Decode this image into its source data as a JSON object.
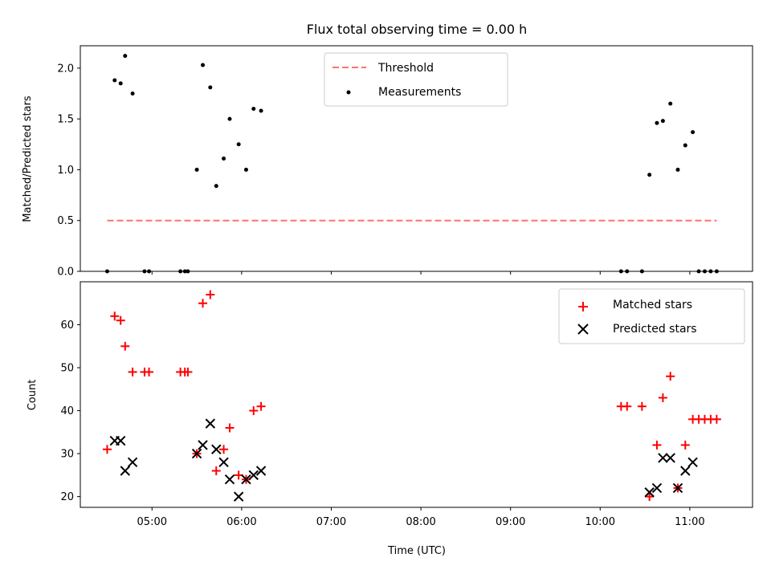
{
  "title": "Flux total observing time = 0.00 h",
  "chart_data": [
    {
      "type": "scatter",
      "ylabel": "Matched/Predicted stars",
      "xlim": [
        "04:12",
        "11:42"
      ],
      "ylim": [
        0,
        2.22
      ],
      "x_ticks": [
        "05:00",
        "06:00",
        "07:00",
        "08:00",
        "09:00",
        "10:00",
        "11:00"
      ],
      "y_ticks": [
        "0.0",
        "0.5",
        "1.0",
        "1.5",
        "2.0"
      ],
      "y_tick_values": [
        0,
        0.5,
        1.0,
        1.5,
        2.0
      ],
      "threshold": {
        "name": "Threshold",
        "y": 0.5,
        "x_range": [
          "04:30",
          "11:18"
        ],
        "color": "#ff7070"
      },
      "measurements": {
        "name": "Measurements",
        "color": "#000000",
        "x": [
          "04:30",
          "04:35",
          "04:39",
          "04:42",
          "04:47",
          "04:55",
          "04:58",
          "05:19",
          "05:22",
          "05:24",
          "05:30",
          "05:34",
          "05:39",
          "05:43",
          "05:48",
          "05:52",
          "05:58",
          "06:03",
          "06:08",
          "06:13",
          "10:14",
          "10:18",
          "10:28",
          "10:33",
          "10:38",
          "10:42",
          "10:47",
          "10:52",
          "10:57",
          "11:02",
          "11:06",
          "11:10",
          "11:14",
          "11:18"
        ],
        "y": [
          0.0,
          1.88,
          1.85,
          2.12,
          1.75,
          0.0,
          0.0,
          0.0,
          0.0,
          0.0,
          1.0,
          2.03,
          1.81,
          0.84,
          1.11,
          1.5,
          1.25,
          1.0,
          1.6,
          1.58,
          0.0,
          0.0,
          0.0,
          0.95,
          1.46,
          1.48,
          1.65,
          1.0,
          1.24,
          1.37,
          0.0,
          0.0,
          0.0,
          0.0
        ]
      },
      "legend_position": "top-center"
    },
    {
      "type": "scatter",
      "xlabel": "Time (UTC)",
      "ylabel": "Count",
      "xlim": [
        "04:12",
        "11:42"
      ],
      "ylim": [
        17.5,
        70
      ],
      "x_ticks": [
        "05:00",
        "06:00",
        "07:00",
        "08:00",
        "09:00",
        "10:00",
        "11:00"
      ],
      "y_ticks": [
        "20",
        "30",
        "40",
        "50",
        "60"
      ],
      "y_tick_values": [
        20,
        30,
        40,
        50,
        60
      ],
      "series": [
        {
          "name": "Matched stars",
          "marker": "plus",
          "color": "#ff0000",
          "x": [
            "04:30",
            "04:35",
            "04:39",
            "04:42",
            "04:47",
            "04:55",
            "04:58",
            "05:19",
            "05:22",
            "05:24",
            "05:30",
            "05:34",
            "05:39",
            "05:43",
            "05:48",
            "05:52",
            "05:58",
            "06:03",
            "06:08",
            "06:13",
            "10:14",
            "10:18",
            "10:28",
            "10:33",
            "10:38",
            "10:42",
            "10:47",
            "10:52",
            "10:57",
            "11:02",
            "11:06",
            "11:10",
            "11:14",
            "11:18"
          ],
          "y": [
            31,
            62,
            61,
            55,
            49,
            49,
            49,
            49,
            49,
            49,
            30,
            65,
            67,
            26,
            31,
            36,
            25,
            24,
            40,
            41,
            41,
            41,
            41,
            20,
            32,
            43,
            48,
            22,
            32,
            38,
            38,
            38,
            38,
            38
          ]
        },
        {
          "name": "Predicted stars",
          "marker": "x",
          "color": "#000000",
          "x": [
            "04:35",
            "04:39",
            "04:42",
            "04:47",
            "05:30",
            "05:34",
            "05:39",
            "05:43",
            "05:48",
            "05:52",
            "05:58",
            "06:03",
            "06:08",
            "06:13",
            "10:33",
            "10:38",
            "10:42",
            "10:47",
            "10:52",
            "10:57",
            "11:02"
          ],
          "y": [
            33,
            33,
            26,
            28,
            30,
            32,
            37,
            31,
            28,
            24,
            20,
            24,
            25,
            26,
            21,
            22,
            29,
            29,
            22,
            26,
            28
          ]
        }
      ],
      "legend_position": "top-right"
    }
  ]
}
